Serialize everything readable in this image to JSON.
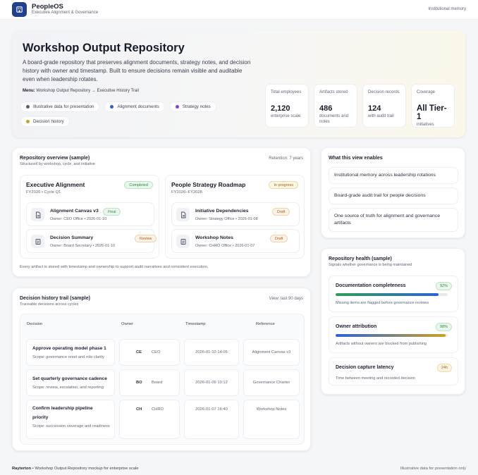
{
  "app": {
    "name": "PeopleOS",
    "subtitle": "Executive Alignment & Governance",
    "top_right": "Institutional memory"
  },
  "hero": {
    "title": "Workshop Output Repository",
    "description": "A board-grade repository that preserves alignment documents, strategy notes, and decision history with owner and timestamp. Built to ensure decisions remain visible and auditable even when leadership rotates.",
    "menu_label": "Menu:",
    "menu_path": "Workshop Output Repository → Executive History Trail",
    "chips": [
      {
        "label": "Illustrative data for presentation",
        "color": "#5a5e6b"
      },
      {
        "label": "Alignment documents",
        "color": "#2f5bd3"
      },
      {
        "label": "Strategy notes",
        "color": "#8b3fd1"
      },
      {
        "label": "Decision history",
        "color": "#c9a227"
      }
    ],
    "stats": [
      {
        "label": "Total employees",
        "value": "2,120",
        "sub": "enterprise scale"
      },
      {
        "label": "Artifacts stored",
        "value": "486",
        "sub": "documents and notes"
      },
      {
        "label": "Decision records",
        "value": "124",
        "sub": "with audit trail"
      },
      {
        "label": "Coverage",
        "value": "All Tier-1",
        "sub": "initiatives"
      }
    ]
  },
  "overview": {
    "title": "Repository overview (sample)",
    "subtitle": "Structured by workshop, cycle, and initiative",
    "retention": "Retention: 7 years",
    "workshops": [
      {
        "title": "Executive Alignment",
        "meta": "FY2026 • Cycle Q1",
        "status": "Completed",
        "artifacts": [
          {
            "name": "Alignment Canvas v3",
            "owner": "Owner: CEO Office • 2026-01-10",
            "tag": "Final",
            "icon": "document-icon"
          },
          {
            "name": "Decision Summary",
            "owner": "Owner: Board Secretary • 2026-01-10",
            "tag": "Review",
            "icon": "notes-icon"
          }
        ]
      },
      {
        "title": "People Strategy Roadmap",
        "meta": "FY2026–FY2028",
        "status": "In progress",
        "artifacts": [
          {
            "name": "Initiative Dependencies",
            "owner": "Owner: Strategy Office • 2026-01-08",
            "tag": "Draft",
            "icon": "document-icon"
          },
          {
            "name": "Workshop Notes",
            "owner": "Owner: CHRO Office • 2026-01-07",
            "tag": "Draft",
            "icon": "notes-icon"
          }
        ]
      }
    ],
    "footnote": "Every artifact is stored with timestamp and ownership to support audit narratives and consistent execution."
  },
  "history": {
    "title": "Decision history trail (sample)",
    "subtitle": "Traceable decisions across cycles",
    "view": "View: last 90 days",
    "columns": [
      "Decision",
      "Owner",
      "Timestamp",
      "Reference"
    ],
    "rows": [
      {
        "decision": "Approve operating model phase 1",
        "scope": "Scope: governance reset and role clarity",
        "owner_abbr": "CE",
        "owner": "CEO",
        "timestamp": "2026-01-10 14:05",
        "reference": "Alignment Canvas v3"
      },
      {
        "decision": "Set quarterly governance cadence",
        "scope": "Scope: review, escalation, and reporting",
        "owner_abbr": "BO",
        "owner": "Board",
        "timestamp": "2026-01-09 10:12",
        "reference": "Governance Charter"
      },
      {
        "decision": "Confirm leadership pipeline priority",
        "scope": "Scope: succession coverage and readiness",
        "owner_abbr": "CH",
        "owner": "CHRO",
        "timestamp": "2026-01-07 16:40",
        "reference": "Workshop Notes"
      }
    ]
  },
  "enables": {
    "title": "What this view enables",
    "items": [
      "Institutional memory across leadership rotations",
      "Board-grade audit trail for people decisions",
      "One source of truth for alignment and governance artifacts"
    ]
  },
  "health": {
    "title": "Repository health (sample)",
    "subtitle": "Signals whether governance is being maintained",
    "items": [
      {
        "title": "Documentation completeness",
        "value": "92%",
        "fill": 0.92,
        "colors": [
          "#2f9e57",
          "#2f62d6"
        ],
        "sub": "Missing items are flagged before governance reviews"
      },
      {
        "title": "Owner attribution",
        "value": "98%",
        "fill": 0.98,
        "colors": [
          "#2f62d6",
          "#c9a227"
        ],
        "sub": "Artifacts without owners are blocked from publishing"
      },
      {
        "title": "Decision capture latency",
        "value": "24h",
        "sub": "Time between meeting and recorded decision"
      }
    ]
  },
  "footer": {
    "brand": "Rayterton",
    "text": " • Workshop Output Repository mockup for enterprise scale",
    "right": "Illustrative data for presentation only"
  }
}
